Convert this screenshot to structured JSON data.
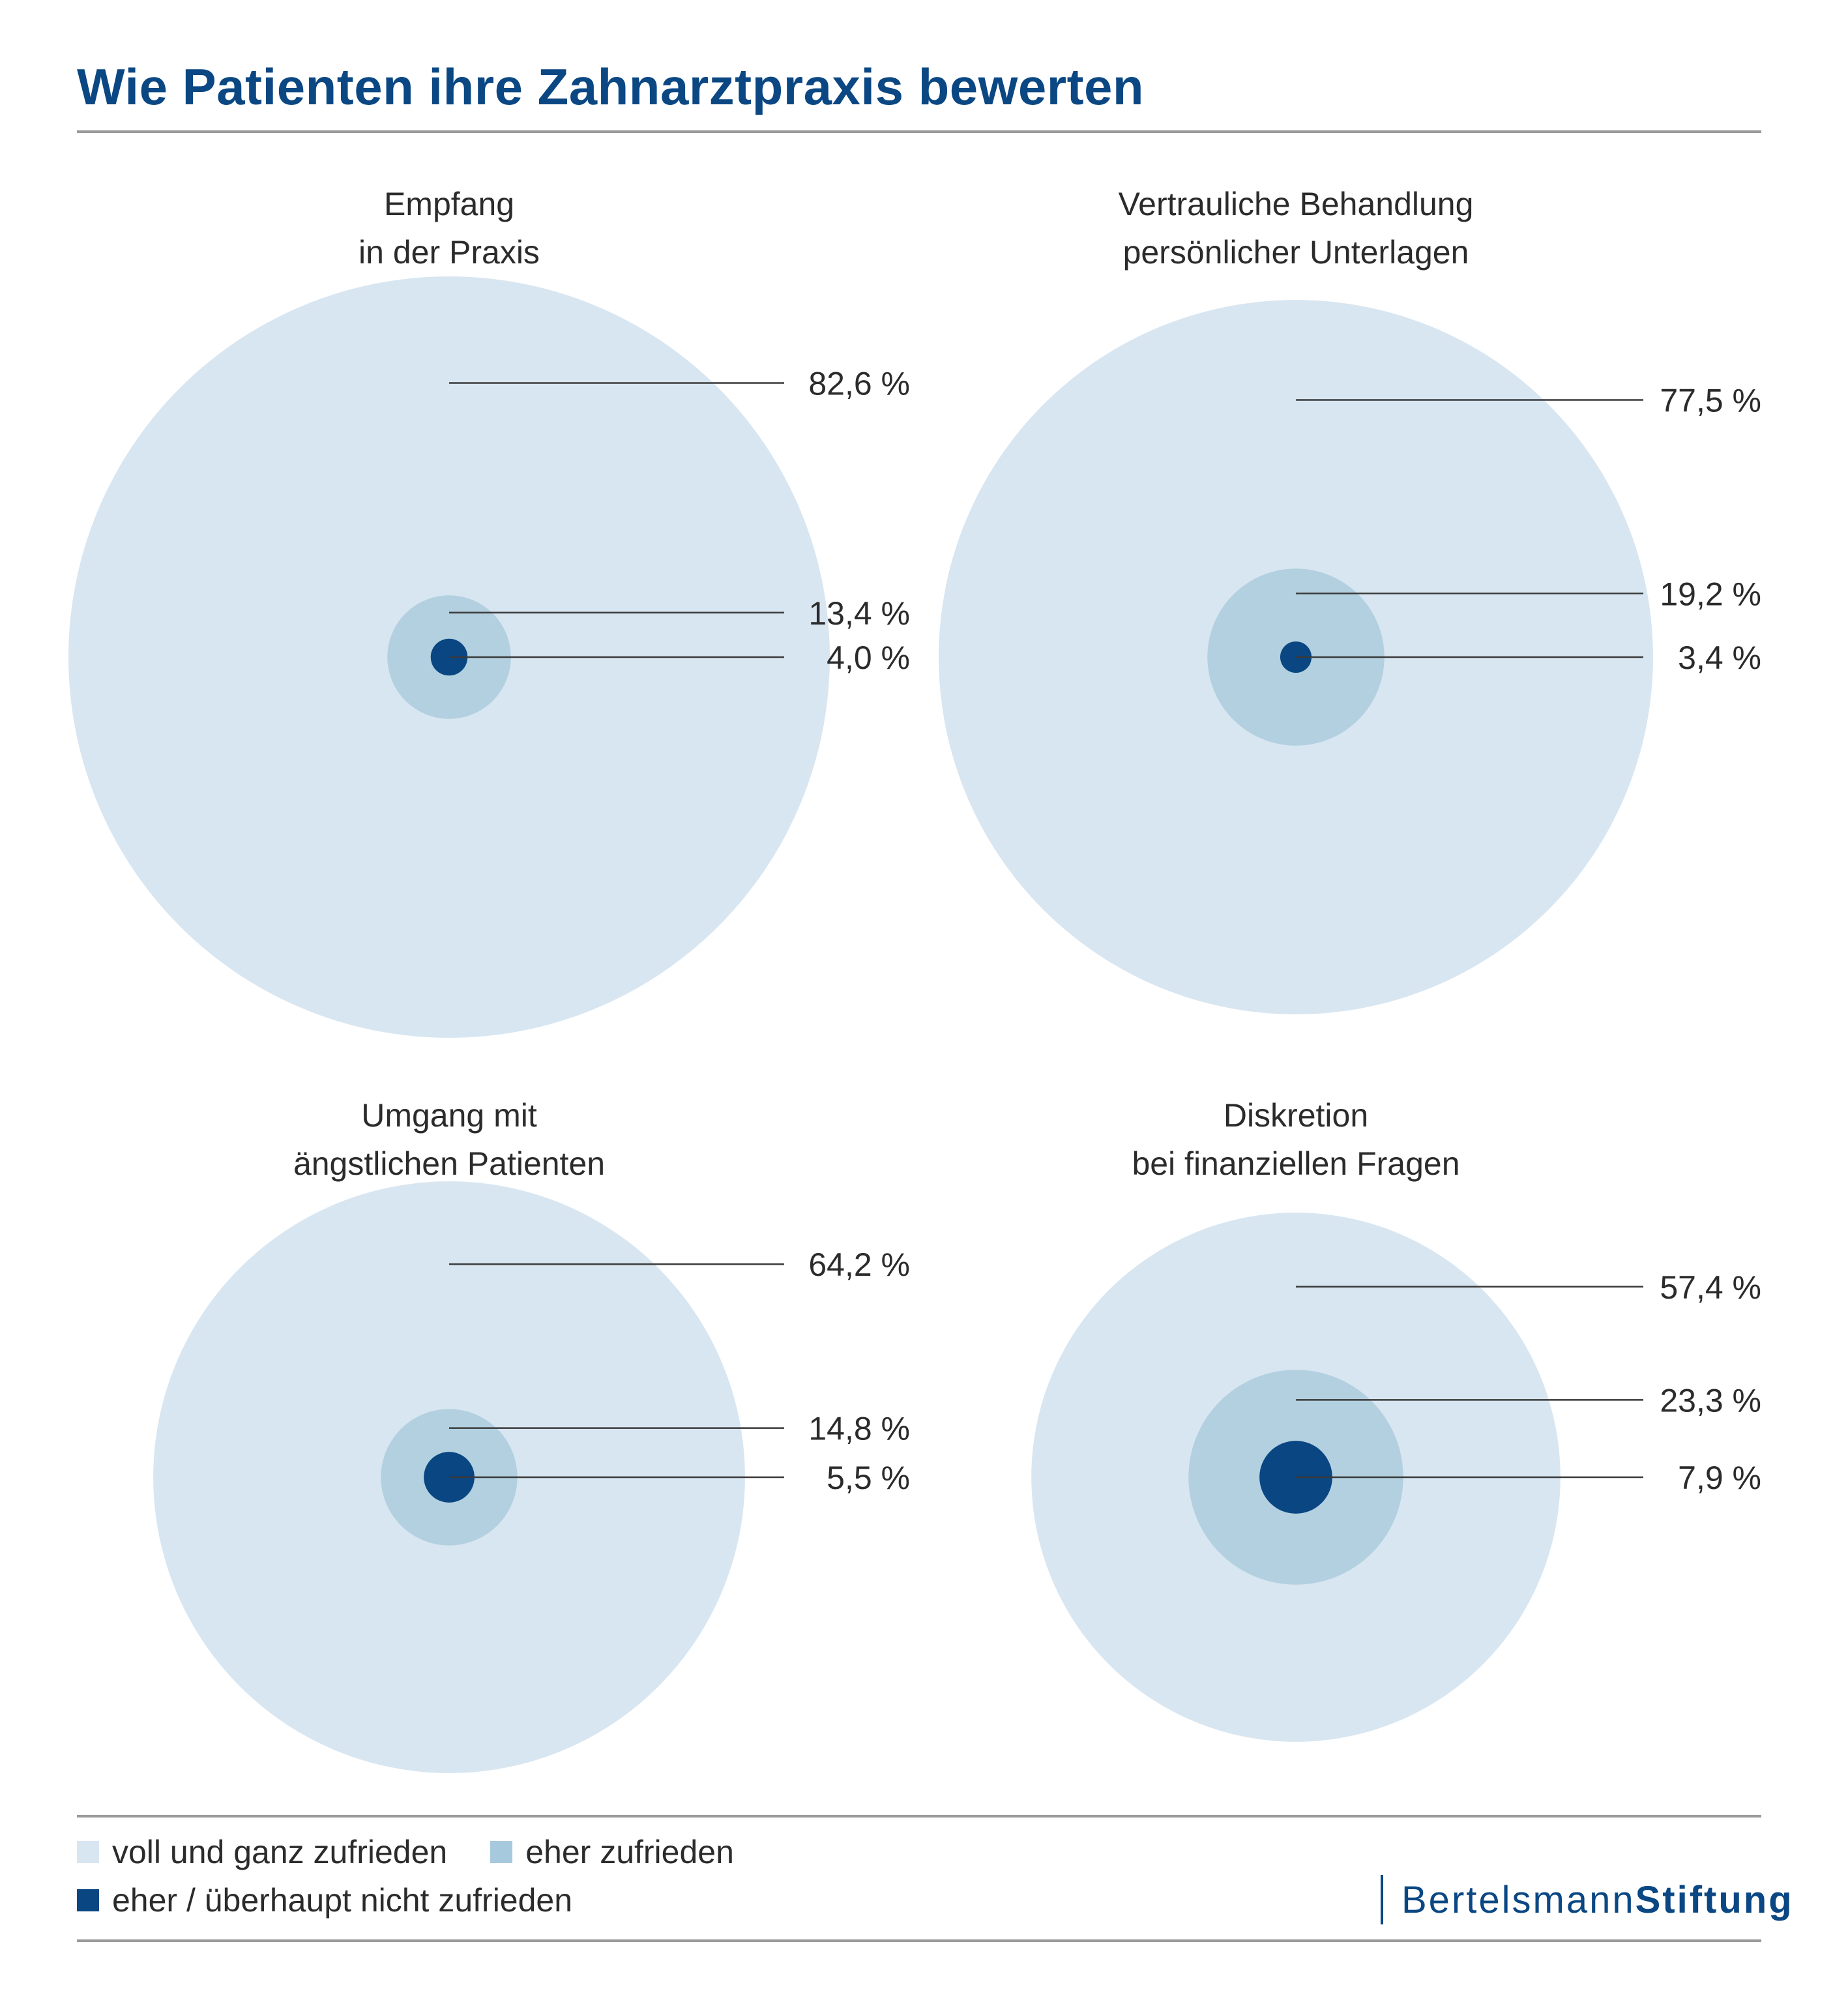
{
  "title": "Wie Patienten ihre Zahnarztpraxis bewerten",
  "colors": {
    "title": "#0a4783",
    "voll_und_ganz": "#d8e6f1",
    "eher_zufrieden": "#b3d0e0",
    "nicht_zufrieden": "#094682",
    "legend_eher_swatch": "#a7c9dd"
  },
  "legend": [
    {
      "key": "voll_und_ganz",
      "label": "voll und ganz zufrieden"
    },
    {
      "key": "eher_zufrieden",
      "label": "eher zufrieden"
    },
    {
      "key": "nicht_zufrieden",
      "label": "eher / überhaupt nicht zufrieden"
    }
  ],
  "logo": {
    "part1": "Bertelsmann",
    "part2": "Stiftung"
  },
  "chart_data": [
    {
      "type": "nested-circles",
      "title_lines": [
        "Empfang",
        "in der Praxis"
      ],
      "categories": [
        "voll und ganz zufrieden",
        "eher zufrieden",
        "eher / überhaupt nicht zufrieden"
      ],
      "values": [
        82.6,
        13.4,
        4.0
      ],
      "labels": [
        "82,6 %",
        "13,4 %",
        "4,0 %"
      ],
      "unit": "%"
    },
    {
      "type": "nested-circles",
      "title_lines": [
        "Vertrauliche Behandlung",
        "persönlicher Unterlagen"
      ],
      "categories": [
        "voll und ganz zufrieden",
        "eher zufrieden",
        "eher / überhaupt nicht zufrieden"
      ],
      "values": [
        77.5,
        19.2,
        3.4
      ],
      "labels": [
        "77,5 %",
        "19,2 %",
        "3,4 %"
      ],
      "unit": "%"
    },
    {
      "type": "nested-circles",
      "title_lines": [
        "Umgang mit",
        "ängstlichen Patienten"
      ],
      "categories": [
        "voll und ganz zufrieden",
        "eher zufrieden",
        "eher / überhaupt nicht zufrieden"
      ],
      "values": [
        64.2,
        14.8,
        5.5
      ],
      "labels": [
        "64,2 %",
        "14,8 %",
        "5,5 %"
      ],
      "unit": "%"
    },
    {
      "type": "nested-circles",
      "title_lines": [
        "Diskretion",
        "bei finanziellen Fragen"
      ],
      "categories": [
        "voll und ganz zufrieden",
        "eher zufrieden",
        "eher / überhaupt nicht zufrieden"
      ],
      "values": [
        57.4,
        23.3,
        7.9
      ],
      "labels": [
        "57,4 %",
        "23,3 %",
        "7,9 %"
      ],
      "unit": "%"
    }
  ]
}
